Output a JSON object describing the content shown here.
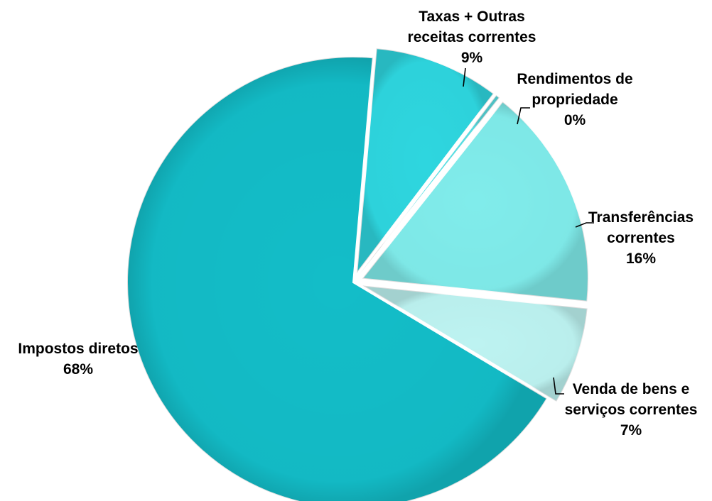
{
  "chart_data": {
    "type": "pie",
    "title": "",
    "slices": [
      {
        "name": "Impostos diretos",
        "value": 68,
        "value_label": "68%",
        "color": "#13BDC8",
        "label_lines": [
          "Impostos diretos",
          "68%"
        ]
      },
      {
        "name": "Taxas + Outras receitas correntes",
        "value": 9,
        "value_label": "9%",
        "color": "#2ED6DF",
        "label_lines": [
          "Taxas + Outras",
          "receitas correntes",
          "9%"
        ]
      },
      {
        "name": "Rendimentos de propriedade",
        "value": 0.3,
        "value_label": "0%",
        "color": "#5BE0E4",
        "label_lines": [
          "Rendimentos de",
          "propriedade",
          "0%"
        ]
      },
      {
        "name": "Transferências correntes",
        "value": 16,
        "value_label": "16%",
        "color": "#80ECEB",
        "label_lines": [
          "Transferências",
          "correntes",
          "16%"
        ]
      },
      {
        "name": "Venda de bens e serviços correntes",
        "value": 7,
        "value_label": "7%",
        "color": "#BDF3F1",
        "label_lines": [
          "Venda de bens e",
          "serviços correntes",
          "7%"
        ]
      }
    ],
    "legend": "none",
    "data_labels": "outside with leader lines"
  }
}
